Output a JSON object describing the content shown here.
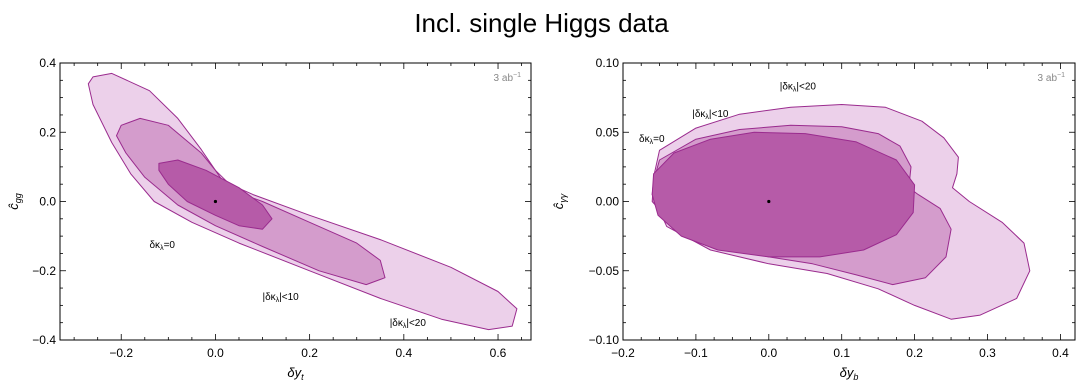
{
  "figure": {
    "title": "Incl. single Higgs data"
  },
  "colors": {
    "outer": "#ecd0ea",
    "middle": "#d49ccc",
    "inner": "#b65ba8",
    "stroke": "#9a2b8e"
  },
  "chart_data": [
    {
      "type": "area",
      "xlabel": "δy_t",
      "ylabel": "ĉ_gg",
      "xlim": [
        -0.33,
        0.67
      ],
      "ylim": [
        -0.4,
        0.4
      ],
      "xticks": [
        "−0.2",
        "0.0",
        "0.2",
        "0.4",
        "0.6"
      ],
      "xtick_values": [
        -0.2,
        0.0,
        0.2,
        0.4,
        0.6
      ],
      "yticks": [
        "0.4",
        "0.2",
        "0.0",
        "−0.2",
        "−0.4"
      ],
      "ytick_values": [
        0.4,
        0.2,
        0.0,
        -0.2,
        -0.4
      ],
      "luminosity": "3 ab",
      "luminosity_sup": "−1",
      "best_fit": [
        0.0,
        0.0
      ],
      "series": [
        {
          "name": "|δκ_λ|<20",
          "label_at": [
            0.37,
            -0.36
          ],
          "points": [
            [
              -0.26,
              0.36
            ],
            [
              -0.22,
              0.37
            ],
            [
              -0.14,
              0.32
            ],
            [
              -0.08,
              0.24
            ],
            [
              -0.03,
              0.15
            ],
            [
              0.0,
              0.09
            ],
            [
              0.03,
              0.05
            ],
            [
              0.08,
              0.02
            ],
            [
              0.2,
              -0.04
            ],
            [
              0.35,
              -0.11
            ],
            [
              0.5,
              -0.19
            ],
            [
              0.6,
              -0.26
            ],
            [
              0.64,
              -0.31
            ],
            [
              0.63,
              -0.36
            ],
            [
              0.58,
              -0.37
            ],
            [
              0.48,
              -0.34
            ],
            [
              0.35,
              -0.28
            ],
            [
              0.2,
              -0.2
            ],
            [
              0.05,
              -0.12
            ],
            [
              -0.05,
              -0.06
            ],
            [
              -0.13,
              0.0
            ],
            [
              -0.18,
              0.08
            ],
            [
              -0.22,
              0.17
            ],
            [
              -0.26,
              0.28
            ],
            [
              -0.27,
              0.34
            ]
          ]
        },
        {
          "name": "|δκ_λ|<10",
          "label_at": [
            0.1,
            -0.285
          ],
          "points": [
            [
              -0.2,
              0.22
            ],
            [
              -0.16,
              0.24
            ],
            [
              -0.1,
              0.22
            ],
            [
              -0.03,
              0.14
            ],
            [
              0.0,
              0.09
            ],
            [
              0.02,
              0.05
            ],
            [
              0.04,
              0.03
            ],
            [
              0.1,
              0.0
            ],
            [
              0.2,
              -0.06
            ],
            [
              0.3,
              -0.12
            ],
            [
              0.35,
              -0.17
            ],
            [
              0.36,
              -0.22
            ],
            [
              0.32,
              -0.24
            ],
            [
              0.22,
              -0.2
            ],
            [
              0.1,
              -0.13
            ],
            [
              0.0,
              -0.07
            ],
            [
              -0.08,
              -0.01
            ],
            [
              -0.15,
              0.07
            ],
            [
              -0.19,
              0.14
            ],
            [
              -0.21,
              0.19
            ]
          ]
        },
        {
          "name": "δκ_λ=0",
          "label_at": [
            -0.14,
            -0.135
          ],
          "points": [
            [
              -0.12,
              0.11
            ],
            [
              -0.08,
              0.12
            ],
            [
              -0.02,
              0.09
            ],
            [
              0.05,
              0.04
            ],
            [
              0.1,
              -0.01
            ],
            [
              0.12,
              -0.05
            ],
            [
              0.1,
              -0.08
            ],
            [
              0.05,
              -0.07
            ],
            [
              0.0,
              -0.04
            ],
            [
              -0.06,
              0.0
            ],
            [
              -0.1,
              0.05
            ],
            [
              -0.12,
              0.09
            ]
          ]
        }
      ]
    },
    {
      "type": "area",
      "xlabel": "δy_b",
      "ylabel": "ĉ_γγ",
      "xlim": [
        -0.2,
        0.42
      ],
      "ylim": [
        -0.1,
        0.1
      ],
      "xticks": [
        "−0.2",
        "−0.1",
        "0.0",
        "0.1",
        "0.2",
        "0.3",
        "0.4"
      ],
      "xtick_values": [
        -0.2,
        -0.1,
        0.0,
        0.1,
        0.2,
        0.3,
        0.4
      ],
      "yticks": [
        "0.10",
        "0.05",
        "0.00",
        "−0.05",
        "−0.10"
      ],
      "ytick_values": [
        0.1,
        0.05,
        0.0,
        -0.05,
        -0.1
      ],
      "luminosity": "3 ab",
      "luminosity_sup": "−1",
      "best_fit": [
        0.0,
        0.0
      ],
      "series": [
        {
          "name": "|δκ_λ|<20",
          "label_at": [
            0.015,
            0.081
          ],
          "points": [
            [
              -0.15,
              0.037
            ],
            [
              -0.1,
              0.053
            ],
            [
              -0.04,
              0.063
            ],
            [
              0.03,
              0.068
            ],
            [
              0.1,
              0.07
            ],
            [
              0.16,
              0.068
            ],
            [
              0.21,
              0.058
            ],
            [
              0.24,
              0.046
            ],
            [
              0.26,
              0.032
            ],
            [
              0.258,
              0.02
            ],
            [
              0.252,
              0.01
            ],
            [
              0.275,
              0.0
            ],
            [
              0.32,
              -0.015
            ],
            [
              0.35,
              -0.03
            ],
            [
              0.358,
              -0.05
            ],
            [
              0.34,
              -0.07
            ],
            [
              0.29,
              -0.082
            ],
            [
              0.25,
              -0.085
            ],
            [
              0.2,
              -0.075
            ],
            [
              0.15,
              -0.063
            ],
            [
              0.08,
              -0.052
            ],
            [
              0.0,
              -0.045
            ],
            [
              -0.08,
              -0.035
            ],
            [
              -0.14,
              -0.018
            ],
            [
              -0.16,
              0.005
            ],
            [
              -0.157,
              0.02
            ]
          ]
        },
        {
          "name": "|δκ_λ|<10",
          "label_at": [
            -0.105,
            0.061
          ],
          "points": [
            [
              -0.15,
              0.03
            ],
            [
              -0.1,
              0.045
            ],
            [
              -0.04,
              0.052
            ],
            [
              0.03,
              0.055
            ],
            [
              0.1,
              0.054
            ],
            [
              0.15,
              0.049
            ],
            [
              0.18,
              0.04
            ],
            [
              0.195,
              0.025
            ],
            [
              0.192,
              0.01
            ],
            [
              0.205,
              0.005
            ],
            [
              0.235,
              -0.005
            ],
            [
              0.25,
              -0.02
            ],
            [
              0.243,
              -0.04
            ],
            [
              0.215,
              -0.055
            ],
            [
              0.17,
              -0.06
            ],
            [
              0.12,
              -0.053
            ],
            [
              0.06,
              -0.045
            ],
            [
              0.0,
              -0.04
            ],
            [
              -0.07,
              -0.032
            ],
            [
              -0.13,
              -0.018
            ],
            [
              -0.16,
              0.0
            ],
            [
              -0.158,
              0.015
            ]
          ]
        },
        {
          "name": "δκ_λ=0",
          "label_at": [
            -0.178,
            0.043
          ],
          "points": [
            [
              -0.158,
              0.02
            ],
            [
              -0.13,
              0.035
            ],
            [
              -0.08,
              0.045
            ],
            [
              -0.02,
              0.05
            ],
            [
              0.05,
              0.049
            ],
            [
              0.12,
              0.043
            ],
            [
              0.175,
              0.03
            ],
            [
              0.2,
              0.012
            ],
            [
              0.198,
              -0.008
            ],
            [
              0.175,
              -0.024
            ],
            [
              0.13,
              -0.035
            ],
            [
              0.07,
              -0.04
            ],
            [
              0.0,
              -0.04
            ],
            [
              -0.07,
              -0.035
            ],
            [
              -0.12,
              -0.025
            ],
            [
              -0.152,
              -0.01
            ],
            [
              -0.16,
              0.005
            ]
          ]
        }
      ]
    }
  ]
}
